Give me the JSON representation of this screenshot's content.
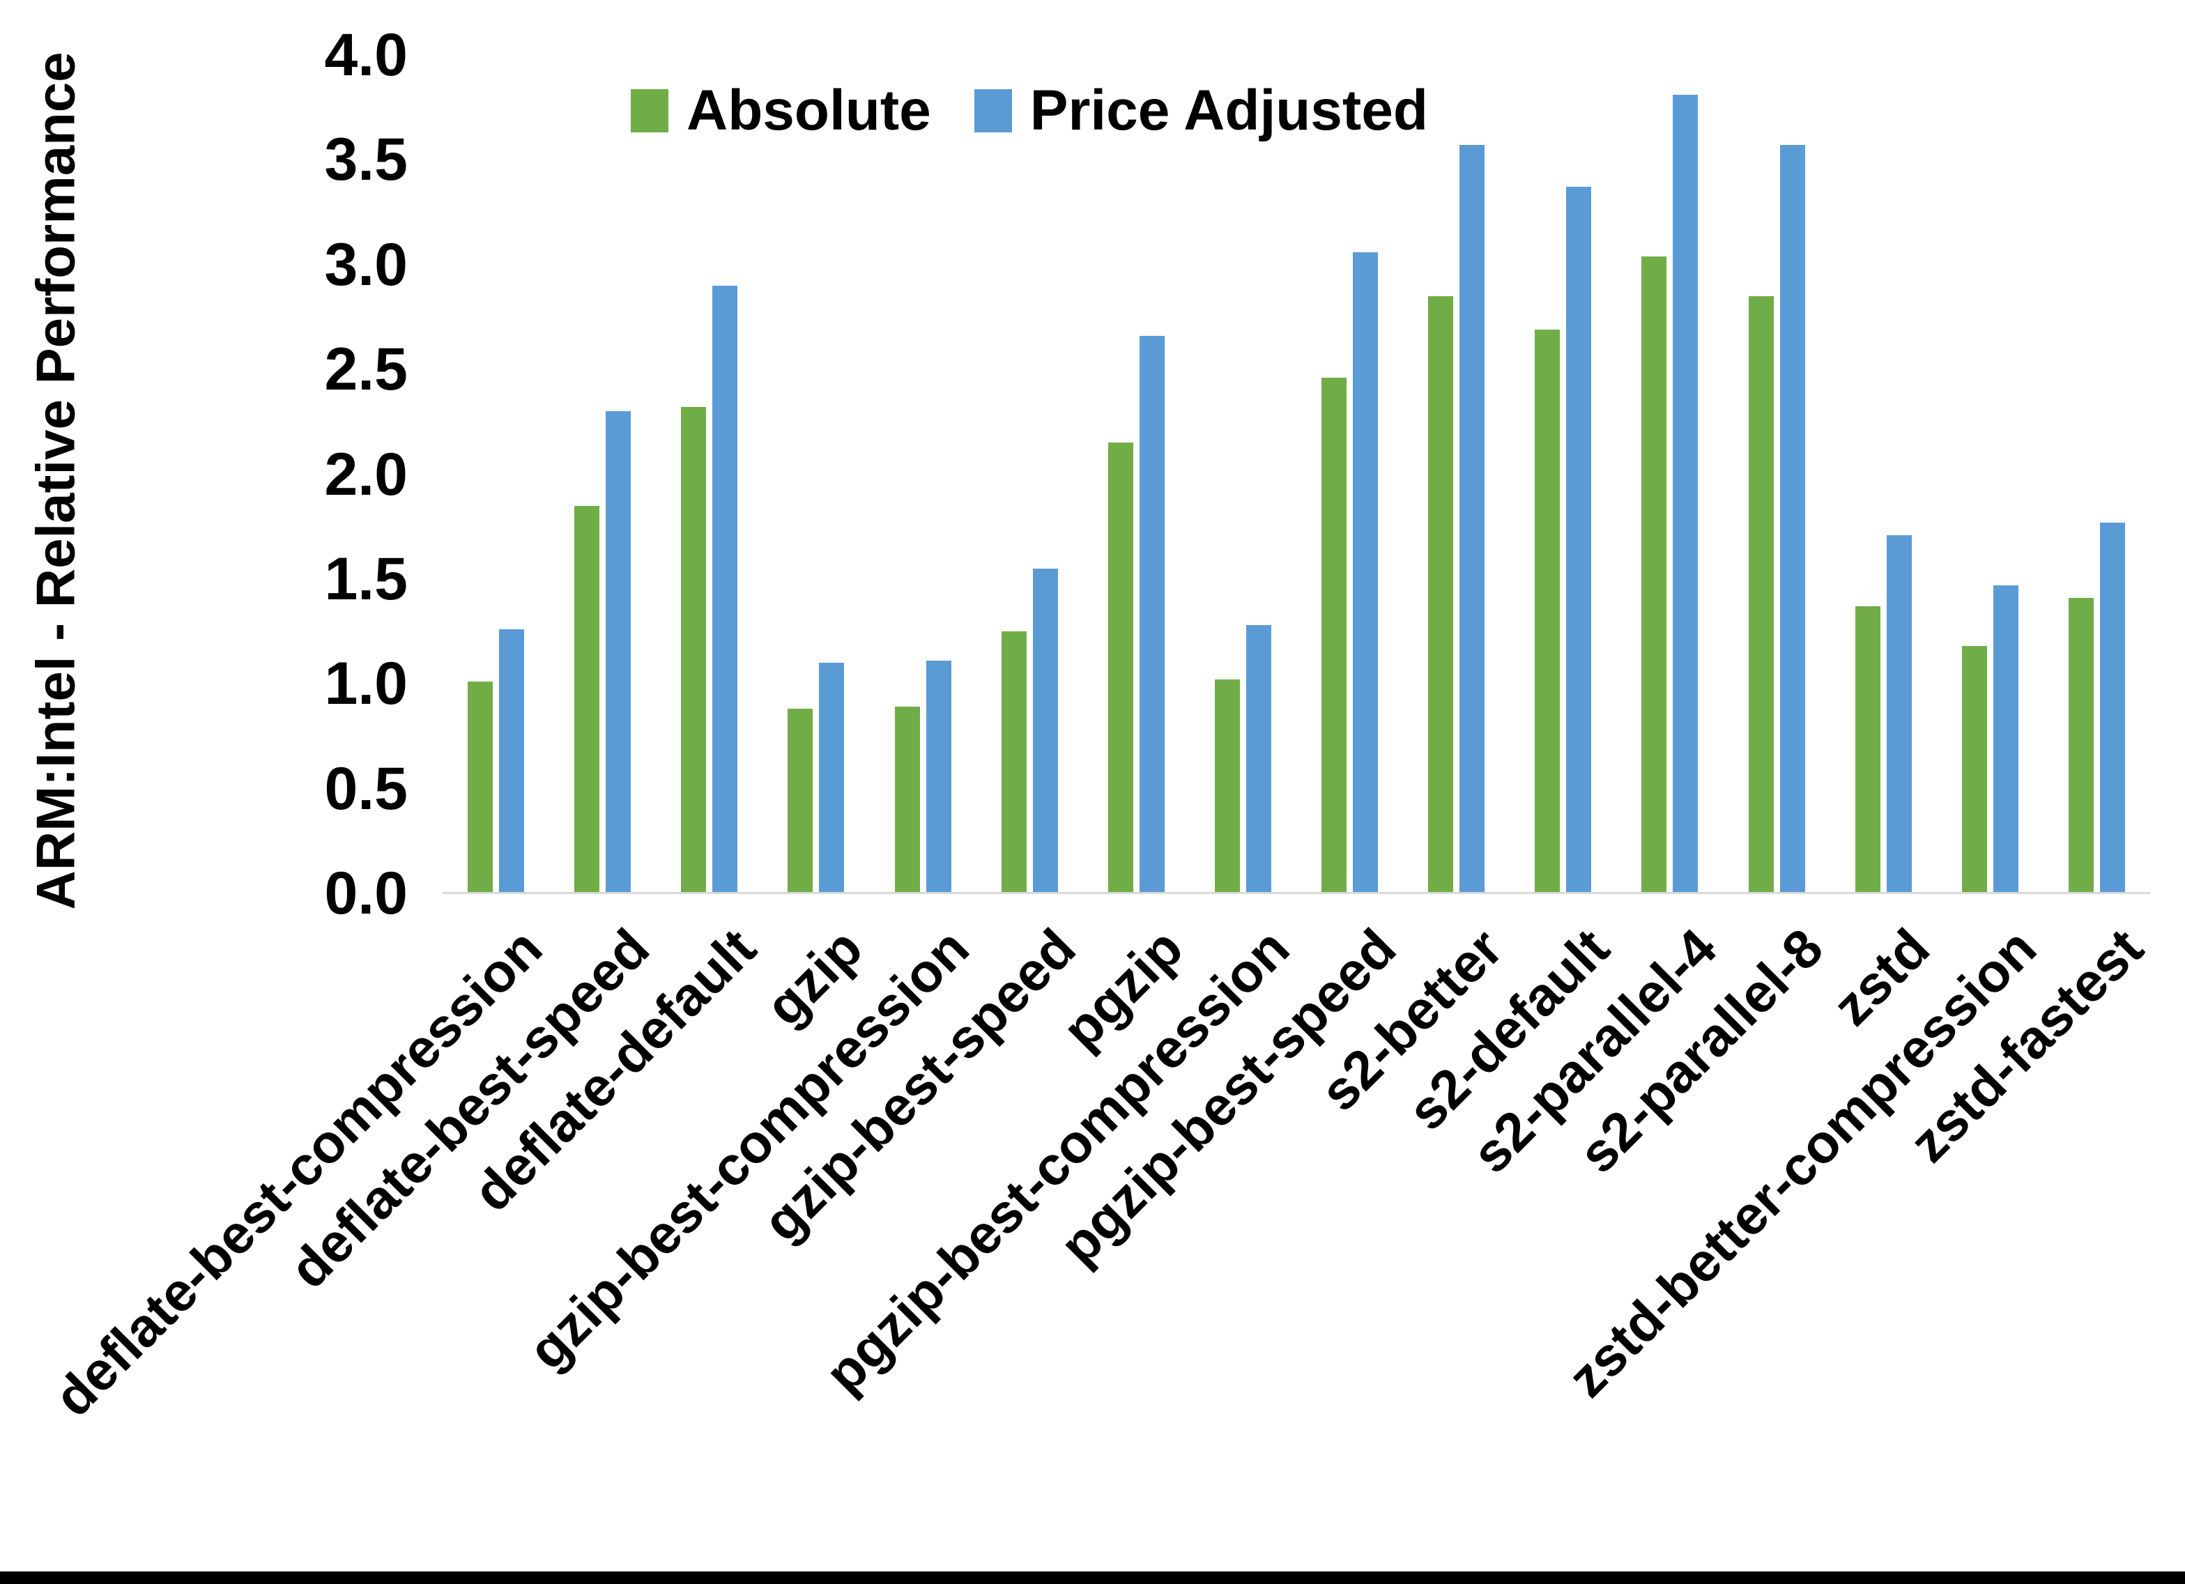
{
  "page": {
    "background": "#ffffff",
    "bottom_border_color": "#000000"
  },
  "chart_data": {
    "type": "bar",
    "title": "",
    "xlabel": "",
    "ylabel": "ARM:Intel - Relative Performance",
    "ylim": [
      0.0,
      4.0
    ],
    "ytick_step": 0.5,
    "grid": false,
    "legend_position": "top-center",
    "axis_line_color": "#D9D9D9",
    "text_color": "#000000",
    "categories": [
      "deflate-best-compression",
      "deflate-best-speed",
      "deflate-default",
      "gzip",
      "gzip-best-compression",
      "gzip-best-speed",
      "pgzip",
      "pgzip-best-compression",
      "pgzip-best-speed",
      "s2-better",
      "s2-default",
      "s2-parallel-4",
      "s2-parallel-8",
      "zstd",
      "zstd-better-compression",
      "zstd-fastest"
    ],
    "series": [
      {
        "name": "Absolute",
        "color": "#70AD47",
        "values": [
          1.01,
          1.85,
          2.32,
          0.88,
          0.89,
          1.25,
          2.15,
          1.02,
          2.46,
          2.85,
          2.69,
          3.04,
          2.85,
          1.37,
          1.18,
          1.41
        ]
      },
      {
        "name": "Price Adjusted",
        "color": "#5B9BD5",
        "values": [
          1.26,
          2.3,
          2.9,
          1.1,
          1.11,
          1.55,
          2.66,
          1.28,
          3.06,
          3.57,
          3.37,
          3.81,
          3.57,
          1.71,
          1.47,
          1.77
        ]
      }
    ]
  }
}
